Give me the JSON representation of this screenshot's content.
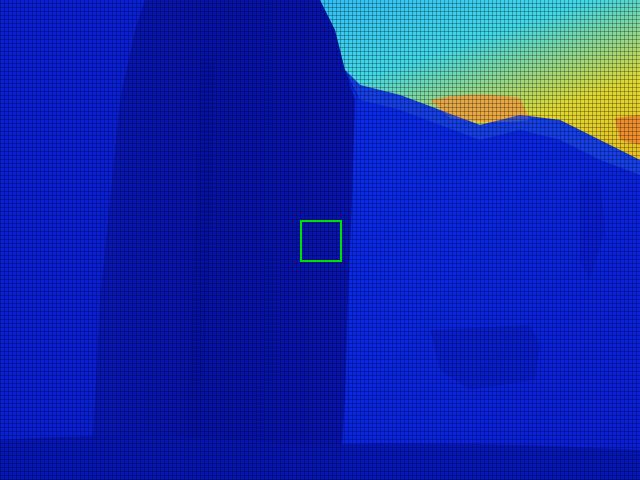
{
  "image": {
    "kind": "depth-colormap-visualization",
    "palette": {
      "far": "#e8e020",
      "mid_far": "#20c8e8",
      "mid": "#1038f0",
      "near": "#0010c8",
      "nearest": "#000a90",
      "marker": "#00e000"
    }
  }
}
